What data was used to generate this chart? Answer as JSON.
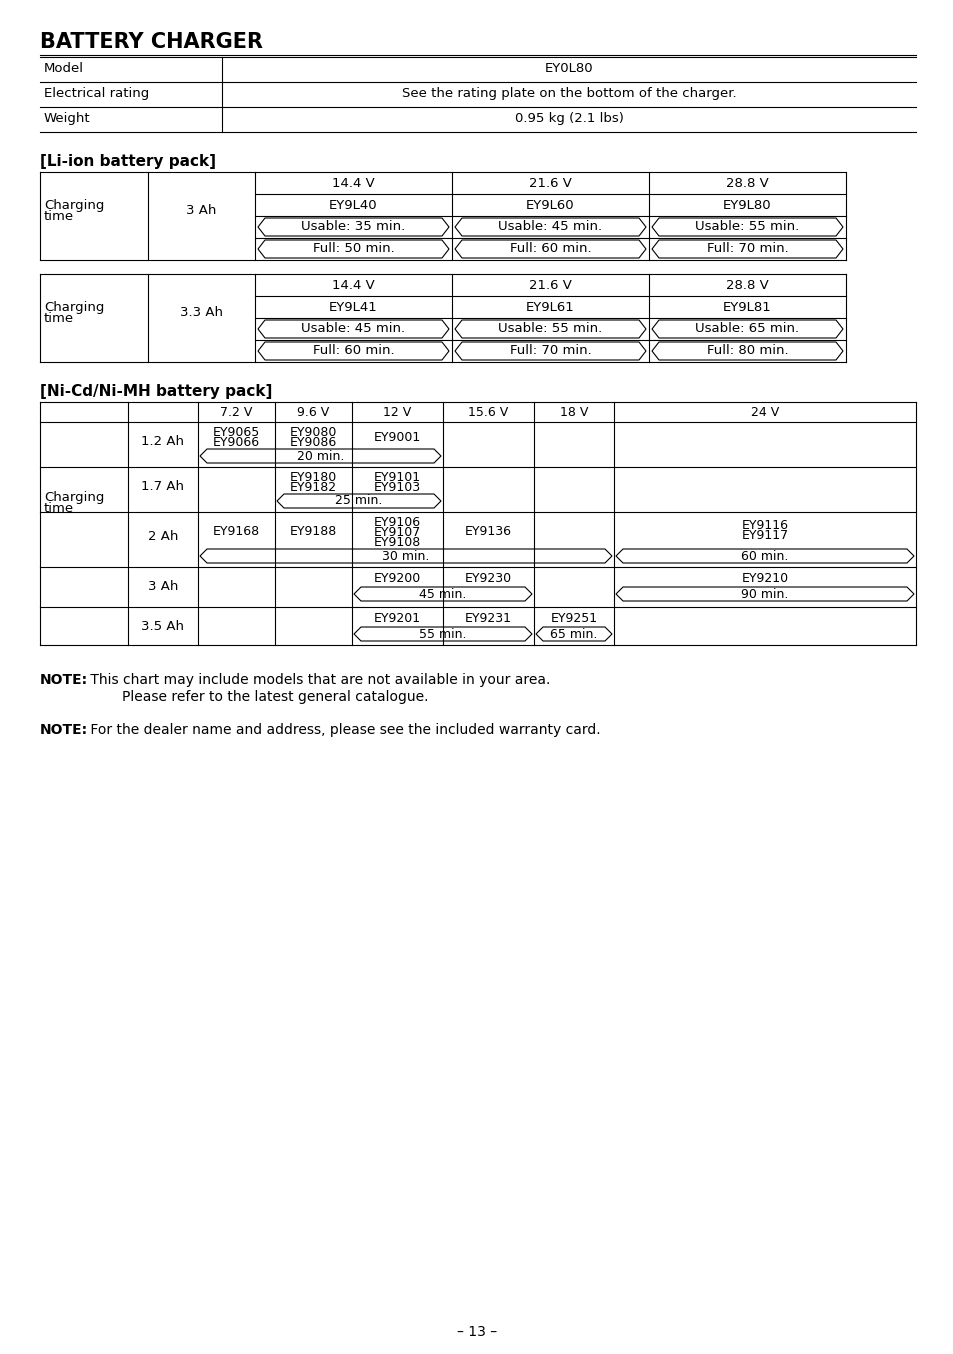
{
  "title": "BATTERY CHARGER",
  "bg_color": "#ffffff",
  "page_number": "– 13 –",
  "spec_rows": [
    [
      "Model",
      "EY0L80"
    ],
    [
      "Electrical rating",
      "See the rating plate on the bottom of the charger."
    ],
    [
      "Weight",
      "0.95 kg (2.1 lbs)"
    ]
  ],
  "liion_title": "[Li-ion battery pack]",
  "nicd_title": "[Ni-Cd/Ni-MH battery pack]",
  "note1_bold": "NOTE:",
  "note1_text": " This chart may include models that are not available in your area.",
  "note1_cont": "Please refer to the latest general catalogue.",
  "note2_bold": "NOTE:",
  "note2_text": " For the dealer name and address, please see the included warranty card."
}
